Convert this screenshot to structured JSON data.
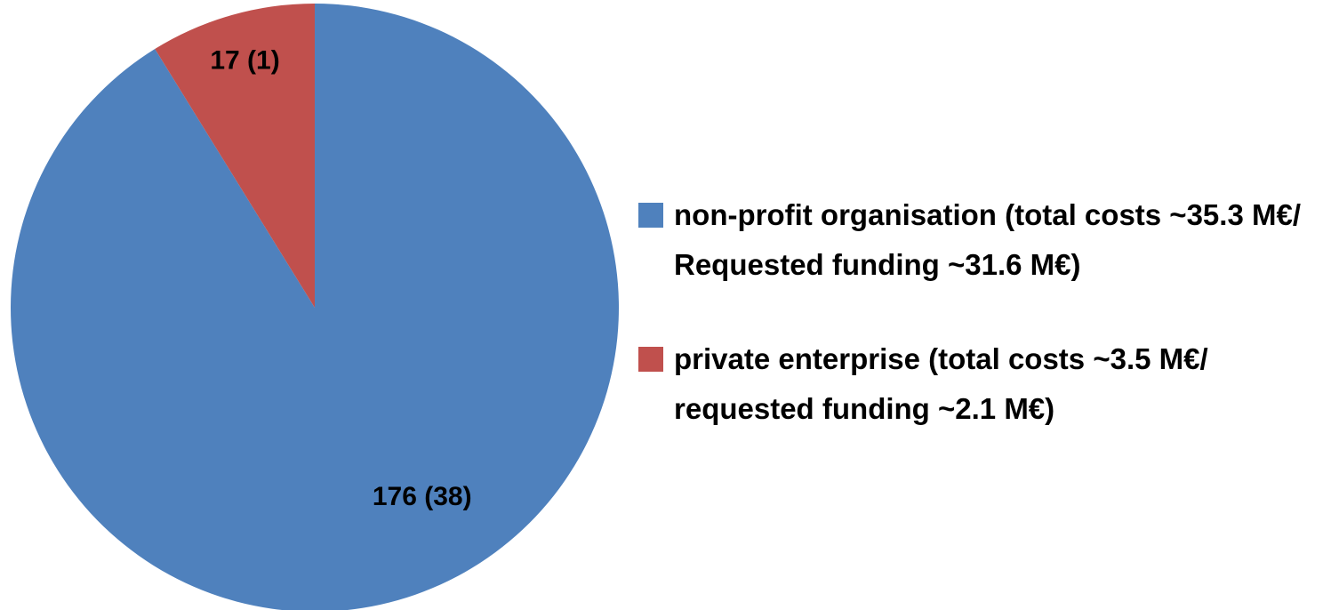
{
  "chart_data": {
    "type": "pie",
    "categories": [
      "non-profit organisation (total costs ~35.3 M€/ Requested funding ~31.6 M€)",
      "private enterprise (total costs ~3.5 M€/ requested funding ~2.1 M€)"
    ],
    "values": [
      176,
      17
    ],
    "value_labels": [
      "176 (38)",
      "17 (1)"
    ],
    "colors": [
      "#4f81bd",
      "#c0504d"
    ],
    "legend": "right"
  }
}
